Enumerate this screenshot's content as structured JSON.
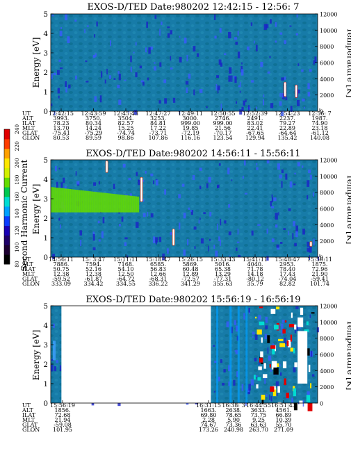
{
  "figure": {
    "colorbar": {
      "label": "Second Harmonic Current",
      "ticks": [
        "80",
        "100",
        "120",
        "140",
        "160",
        "180",
        "200",
        "220",
        "240"
      ],
      "colors": [
        "#000000",
        "#1c0030",
        "#1e0068",
        "#1800b4",
        "#0a3cff",
        "#00a0ff",
        "#00dcd2",
        "#00c850",
        "#64dc00",
        "#d2f000",
        "#ffe600",
        "#ffa000",
        "#ff3c00",
        "#e00000"
      ]
    },
    "panels": [
      {
        "title": "EXOS-D/TED  Date:980202  12:42:15 - 12:56: 7",
        "ylabel": "Energy [eV]",
        "y2label": "Temperature [K]",
        "eph_rows": [
          "UT",
          "ALT",
          "ILAT",
          "MLT",
          "GLAT",
          "GLON"
        ],
        "eph_cols": [
          [
            "12:42:15",
            "3993.",
            "78.23",
            "13.70",
            "-75.41",
            "80.53"
          ],
          [
            "12:43:59",
            "3750.",
            "80.34",
            "14.24",
            "-75.29",
            "89.59"
          ],
          [
            "12:45:43",
            "3504.",
            "82.57",
            "15.25",
            "-74.74",
            "98.86"
          ],
          [
            "12:47:27",
            "3253.",
            "84.81",
            "17.22",
            "-73.71",
            "107.86"
          ],
          [
            "12:49:11",
            "3000.",
            "999.00",
            "19.85",
            "-72.19",
            "116.16"
          ],
          [
            "12:50:55",
            "2746.",
            "999.00",
            "21.56",
            "-70.17",
            "123.54"
          ],
          [
            "12:52:39",
            "2491.",
            "83.02",
            "22.41",
            "-67.65",
            "129.94"
          ],
          [
            "12:54:23",
            "2237.",
            "79.27",
            "22.89",
            "-64.64",
            "135.42"
          ],
          [
            "12:56: 7",
            "1987.",
            "74.90",
            "23.18",
            "-61.12",
            "140.08"
          ]
        ]
      },
      {
        "title": "EXOS-D/TED  Date:980202  14:56:11 - 15:56:11",
        "ylabel": "Energy [eV]",
        "y2label": "Temperature [K]",
        "eph_rows": [
          "UT",
          "ALT",
          "ILAT",
          "MLT",
          "GLAT",
          "GLON"
        ],
        "eph_cols": [
          [
            "14:56:11",
            "7886.",
            "50.75",
            "12.38",
            "-59.52",
            "333.09"
          ],
          [
            "15: 3:47",
            "7594.",
            "52.16",
            "12.38",
            "-61.87",
            "334.42"
          ],
          [
            "15:11:11",
            "7168.",
            "54.10",
            "12.50",
            "-64.72",
            "334.55"
          ],
          [
            "15:18:47",
            "6585.",
            "56.83",
            "12.66",
            "-68.31",
            "336.22"
          ],
          [
            "15:26:15",
            "5869.",
            "60.48",
            "12.89",
            "-72.57",
            "341.29"
          ],
          [
            "15:33:43",
            "5016.",
            "65.38",
            "13.29",
            "-77.31",
            "355.63"
          ],
          [
            "15:41:11",
            "4040.",
            "71.78",
            "14.18",
            "-80.12",
            "35.79"
          ],
          [
            "15:48:47",
            "2953.",
            "78.40",
            "17.43",
            "-74.04",
            "82.82"
          ],
          [
            "15:56:11",
            "1875.",
            "72.96",
            "21.90",
            "-59.41",
            "101.74"
          ]
        ]
      },
      {
        "title": "EXOS-D/TED  Date:980202  15:56:19 - 16:56:19",
        "ylabel": "Energy [eV]",
        "y2label": "Temperature [K]",
        "eph_rows": [
          "UT",
          "ALT",
          "ILAT",
          "MLT",
          "GLAT",
          "GLON"
        ],
        "eph_cols": [
          [
            "15:56:19",
            "1856.",
            "72.68",
            "21.94",
            "-59.08",
            "101.95"
          ],
          [
            "16:31:15",
            "1663.",
            "69.80",
            "2.28",
            "74.67",
            "173.26"
          ],
          [
            "16:38: 3",
            "2638.",
            "78.65",
            "5.90",
            "73.36",
            "240.98"
          ],
          [
            "16:44:55",
            "3633.",
            "73.75",
            "9.25",
            "63.63",
            "263.70"
          ],
          [
            "16:51:43",
            "4561.",
            "66.89",
            "10.39",
            "55.70",
            "271.09"
          ]
        ]
      }
    ]
  },
  "chart_data": [
    {
      "type": "heatmap",
      "title": "EXOS-D/TED  Date:980202  12:42:15 - 12:56: 7",
      "xlabel": "",
      "ylabel": "Energy [eV]",
      "y2label": "Temperature [K]",
      "x_ticks": [
        "12:42:15",
        "12:43:59",
        "12:45:43",
        "12:47:27",
        "12:49:11",
        "12:50:55",
        "12:52:39",
        "12:54:23",
        "12:56: 7"
      ],
      "y_ticks": [
        0,
        1,
        2,
        3,
        4,
        5
      ],
      "y2_ticks": [
        0,
        2000,
        4000,
        6000,
        8000,
        10000,
        12000
      ],
      "ylim": [
        0,
        5
      ],
      "y2lim": [
        0,
        12000
      ],
      "background_level": 160,
      "streaks": [
        {
          "time_frac": 0.878,
          "e_lo": 0.75,
          "e_hi": 1.5,
          "level": 240
        },
        {
          "time_frac": 0.92,
          "e_lo": 0.7,
          "e_hi": 1.35,
          "level": 240
        }
      ]
    },
    {
      "type": "heatmap",
      "title": "EXOS-D/TED  Date:980202  14:56:11 - 15:56:11",
      "xlabel": "",
      "ylabel": "Energy [eV]",
      "y2label": "Temperature [K]",
      "x_ticks": [
        "14:56:11",
        "15: 3:47",
        "15:11:11",
        "15:18:47",
        "15:26:15",
        "15:33:43",
        "15:41:11",
        "15:48:47",
        "15:56:11"
      ],
      "y_ticks": [
        0,
        1,
        2,
        3,
        4,
        5
      ],
      "y2_ticks": [
        0,
        2000,
        4000,
        6000,
        8000,
        10000,
        12000
      ],
      "ylim": [
        0,
        5
      ],
      "y2lim": [
        0,
        12000
      ],
      "background_level": 160,
      "enhanced_band": {
        "time_frac_end": 0.33,
        "e_lo": 2.3,
        "e_hi": 3.6,
        "level": 180
      },
      "streaks": [
        {
          "time_frac": 0.21,
          "e_lo": 4.35,
          "e_hi": 4.95,
          "level": 230
        },
        {
          "time_frac": 0.34,
          "e_lo": 2.85,
          "e_hi": 4.1,
          "level": 230
        },
        {
          "time_frac": 0.46,
          "e_lo": 0.6,
          "e_hi": 1.45,
          "level": 230
        },
        {
          "time_frac": 0.975,
          "e_lo": 0.55,
          "e_hi": 0.8,
          "level": 230
        }
      ]
    },
    {
      "type": "heatmap",
      "title": "EXOS-D/TED  Date:980202  15:56:19 - 16:56:19",
      "xlabel": "",
      "ylabel": "Energy [eV]",
      "y2label": "Temperature [K]",
      "x_ticks": [
        "15:56:19",
        "16:31:15",
        "16:38: 3",
        "16:44:55",
        "16:51:43"
      ],
      "y_ticks": [
        0,
        1,
        2,
        3,
        4,
        5
      ],
      "y2_ticks": [
        0,
        2000,
        4000,
        6000,
        8000,
        10000,
        12000
      ],
      "ylim": [
        0,
        5
      ],
      "y2lim": [
        0,
        12000
      ],
      "background_level": 160,
      "data_gap": {
        "time_frac_start": 0.04,
        "time_frac_end": 0.6
      },
      "saturated_region": {
        "time_frac_start": 0.76,
        "time_frac_end": 1.0,
        "level": 240
      }
    }
  ]
}
